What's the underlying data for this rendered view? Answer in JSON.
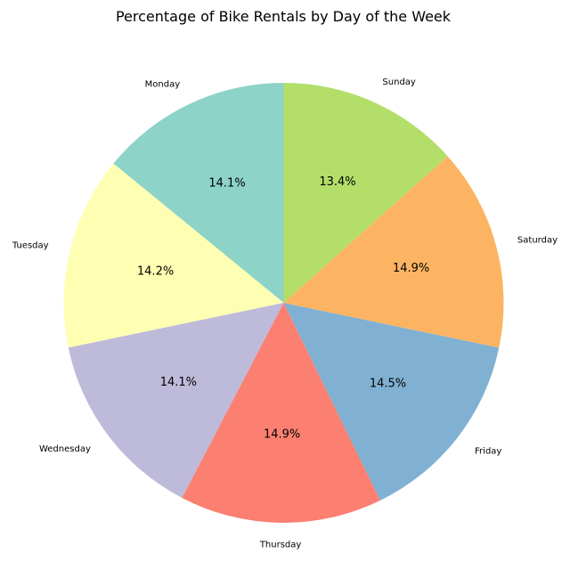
{
  "chart_data": {
    "type": "pie",
    "title": "Percentage of Bike Rentals by Day of the Week",
    "categories": [
      "Monday",
      "Tuesday",
      "Wednesday",
      "Thursday",
      "Friday",
      "Saturday",
      "Sunday"
    ],
    "values": [
      14.1,
      14.2,
      14.1,
      14.9,
      14.5,
      14.9,
      13.4
    ],
    "value_labels": [
      "14.1%",
      "14.2%",
      "14.1%",
      "14.9%",
      "14.5%",
      "14.9%",
      "13.4%"
    ],
    "colors": [
      "#8dd3c7",
      "#ffffb3",
      "#bebada",
      "#fb8072",
      "#80b1d3",
      "#fdb462",
      "#b3de69"
    ],
    "start_angle_deg": 90,
    "direction": "counterclockwise",
    "legend": "none"
  }
}
